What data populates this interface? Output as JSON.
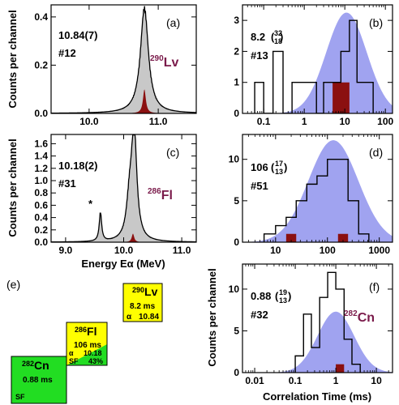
{
  "colors": {
    "energy_fill": "#c8c8c8",
    "energy_narrow": "#8b1010",
    "time_fit_fill": "#a0a3f0",
    "time_narrow": "#8b1010",
    "isotope_label": "#7a1a4a",
    "box_yellow": "#ffff00",
    "box_green": "#22dd22"
  },
  "axis_titles": {
    "y_top": "Counts per channel",
    "y_mid": "Counts per channel",
    "y_right": "Counts per channel",
    "x_energy": "Energy Eα (MeV)",
    "x_time": "Correlation Time (ms)"
  },
  "chart_data": [
    {
      "id": "a",
      "type": "area",
      "panel_label": "(a)",
      "value": "10.84(7)",
      "count": "#12",
      "isotope_mass": "290",
      "isotope_symbol": "Lv",
      "xlabel": "",
      "ylabel": "Counts per channel",
      "xlim": [
        9.45,
        11.55
      ],
      "ylim": [
        0,
        0.45
      ],
      "x_scale": "linear",
      "grid": false,
      "xticks": [
        10.0,
        11.0
      ],
      "xtick_labels": [
        "10.0",
        "11.0"
      ],
      "yticks": [
        0.0,
        0.2,
        0.4
      ],
      "ytick_labels": [
        "0.0",
        "0.2",
        "0.4"
      ],
      "series": [
        {
          "kind": "summed_distribution",
          "peaks": [
            {
              "center": 10.8,
              "height": 0.42,
              "width": 0.07
            }
          ]
        },
        {
          "kind": "narrow_component",
          "peaks": [
            {
              "center": 10.8,
              "height": 0.1,
              "width": 0.025
            }
          ]
        }
      ]
    },
    {
      "id": "b",
      "type": "bar",
      "panel_label": "(b)",
      "value": "8.2",
      "value_up": "32",
      "value_down": "18",
      "count": "#13",
      "xlabel": "",
      "ylabel": "",
      "xlim": [
        0.03,
        150
      ],
      "ylim": [
        0,
        3.5
      ],
      "x_scale": "log",
      "grid": false,
      "xticks": [
        0.1,
        1,
        10,
        100
      ],
      "xtick_labels": [
        "0.1",
        "1",
        "10",
        "100"
      ],
      "yticks": [
        0,
        1,
        2,
        3
      ],
      "ytick_labels": [
        "0",
        "1",
        "2",
        "3"
      ],
      "histogram": {
        "edges": [
          0.06,
          0.1,
          0.17,
          0.3,
          0.5,
          1,
          2,
          3,
          5,
          8,
          13,
          20,
          30,
          50
        ],
        "counts": [
          1,
          0,
          2,
          0,
          1,
          1,
          0,
          1,
          1,
          2,
          3,
          1,
          1
        ]
      },
      "fit": {
        "peak_x": 11,
        "peak_y": 3.25,
        "log_sigma": 0.5
      },
      "narrow": {
        "edges": [
          5,
          13
        ],
        "counts": [
          1
        ]
      }
    },
    {
      "id": "c",
      "type": "area",
      "panel_label": "(c)",
      "value": "10.18(2)",
      "count": "#31",
      "marker": "*",
      "isotope_mass": "286",
      "isotope_symbol": "Fl",
      "xlabel": "Energy Eα (MeV)",
      "ylabel": "Counts per channel",
      "xlim": [
        8.75,
        11.25
      ],
      "ylim": [
        0,
        1.75
      ],
      "x_scale": "linear",
      "grid": false,
      "xticks": [
        9.0,
        10.0,
        11.0
      ],
      "xtick_labels": [
        "9.0",
        "10.0",
        "11.0"
      ],
      "yticks": [
        0.0,
        0.2,
        0.4,
        0.6,
        0.8,
        1.0,
        1.2,
        1.4,
        1.6
      ],
      "ytick_labels": [
        "0.0",
        "0.2",
        "0.4",
        "0.6",
        "0.8",
        "1.0",
        "1.2",
        "1.4",
        "1.6"
      ],
      "series": [
        {
          "kind": "summed_distribution",
          "peaks": [
            {
              "center": 9.6,
              "height": 0.45,
              "width": 0.025
            },
            {
              "center": 10.1,
              "height": 0.55,
              "width": 0.06
            },
            {
              "center": 10.18,
              "height": 1.7,
              "width": 0.055
            }
          ]
        },
        {
          "kind": "narrow_component",
          "peaks": [
            {
              "center": 10.16,
              "height": 0.14,
              "width": 0.025
            }
          ]
        }
      ]
    },
    {
      "id": "d",
      "type": "bar",
      "panel_label": "(d)",
      "value": "106",
      "value_up": "17",
      "value_down": "13",
      "count": "#51",
      "xlabel": "",
      "ylabel": "",
      "xlim": [
        2.3,
        1800
      ],
      "ylim": [
        0,
        13
      ],
      "x_scale": "log",
      "grid": false,
      "xticks": [
        10,
        100,
        1000
      ],
      "xtick_labels": [
        "10",
        "100",
        "1000"
      ],
      "yticks": [
        0,
        5,
        10
      ],
      "ytick_labels": [
        "0",
        "5",
        "10"
      ],
      "histogram": {
        "edges": [
          6,
          10,
          16,
          25,
          40,
          63,
          100,
          160,
          250,
          400,
          630
        ],
        "counts": [
          1,
          2,
          3,
          5,
          7,
          8,
          10,
          10,
          5,
          1
        ]
      },
      "fit": {
        "peak_x": 130,
        "peak_y": 12.3,
        "log_sigma": 0.48
      },
      "narrow": [
        {
          "edges": [
            16,
            25
          ],
          "counts": [
            1
          ]
        },
        {
          "edges": [
            160,
            250
          ],
          "counts": [
            1
          ]
        }
      ]
    },
    {
      "id": "f",
      "type": "bar",
      "panel_label": "(f)",
      "value": "0.88",
      "value_up": "19",
      "value_down": "13",
      "count": "#32",
      "isotope_mass": "282",
      "isotope_symbol": "Cn",
      "xlabel": "Correlation Time (ms)",
      "ylabel": "Counts per channel",
      "xlim": [
        0.005,
        25
      ],
      "ylim": [
        0,
        13
      ],
      "x_scale": "log",
      "grid": false,
      "xticks": [
        0.01,
        0.1,
        1,
        10
      ],
      "xtick_labels": [
        "0.01",
        "0.1",
        "1",
        "10"
      ],
      "yticks": [
        0,
        5,
        10
      ],
      "ytick_labels": [
        "0",
        "5",
        "10"
      ],
      "histogram": {
        "edges": [
          0.1,
          0.16,
          0.25,
          0.4,
          0.63,
          1,
          1.6,
          2.5,
          4
        ],
        "counts": [
          2,
          7,
          3,
          9,
          12,
          10,
          4,
          1
        ]
      },
      "fit": {
        "peak_x": 1.0,
        "peak_y": 7.3,
        "log_sigma": 0.45
      },
      "narrow": {
        "edges": [
          1.0,
          1.6
        ],
        "counts": [
          1
        ]
      }
    }
  ],
  "decay_chain": {
    "panel_label": "(e)",
    "boxes": [
      {
        "mass": "290",
        "symbol": "Lv",
        "half_life": "8.2 ms",
        "mode": "α",
        "energy": "10.84"
      },
      {
        "mass": "286",
        "symbol": "Fl",
        "half_life": "106 ms",
        "mode": "α",
        "energy": "10.18",
        "mode2": "SF",
        "branch": "43%"
      },
      {
        "mass": "282",
        "symbol": "Cn",
        "half_life": "0.88 ms",
        "mode": "SF"
      }
    ]
  }
}
